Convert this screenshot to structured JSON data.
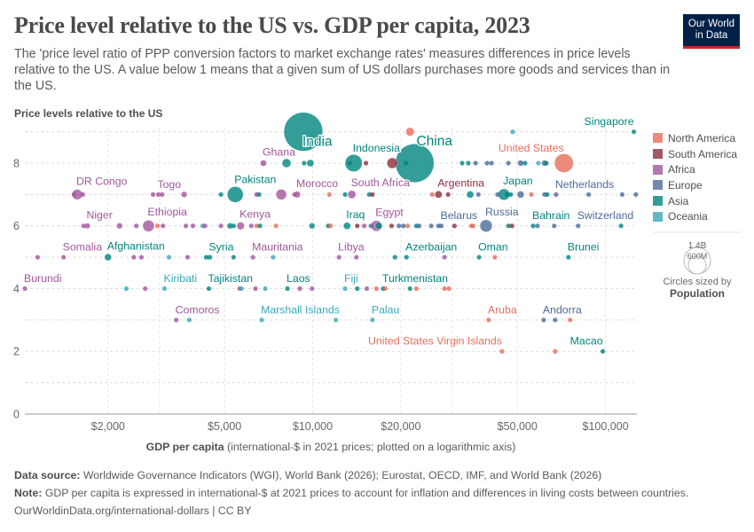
{
  "title": "Price level relative to the US vs. GDP per capita, 2023",
  "subtitle": "The 'price level ratio of PPP conversion factors to market exchange rates' measures differences in price levels relative to the US. A value below 1 means that a given sum of US dollars purchases more goods and services than in the US.",
  "logo": {
    "line1": "Our World",
    "line2": "in Data"
  },
  "footer": {
    "source_label": "Data source:",
    "source_text": "Worldwide Governance Indicators (WGI), World Bank (2026); Eurostat, OECD, IMF, and World Bank (2026)",
    "note_label": "Note:",
    "note_text": "GDP per capita is expressed in international-$ at 2021 prices to account for inflation and differences in living costs between countries.",
    "credit": "OurWorldinData.org/international-dollars | CC BY"
  },
  "size_legend": {
    "large": "1.4B",
    "small": "600M",
    "caption": "Circles sized by",
    "variable": "Population"
  },
  "chart_data": {
    "type": "scatter",
    "title": "Price level relative to the US vs. GDP per capita, 2023",
    "ylabel": "Price levels relative to the US",
    "xlabel_bold": "GDP per capita",
    "xlabel_rest": "(international-$ in 2021 prices; plotted on a logarithmic axis)",
    "x_scale": "log",
    "xlim": [
      1040,
      128000
    ],
    "ylim": [
      0,
      9
    ],
    "grid": true,
    "legend_position": "right",
    "x_ticks": [
      {
        "value": 2000,
        "label": "$2,000"
      },
      {
        "value": 5000,
        "label": "$5,000"
      },
      {
        "value": 10000,
        "label": "$10,000"
      },
      {
        "value": 20000,
        "label": "$20,000"
      },
      {
        "value": 50000,
        "label": "$50,000"
      },
      {
        "value": 100000,
        "label": "$100,000"
      }
    ],
    "x_gridlines": [
      2000,
      3000,
      5000,
      10000,
      20000,
      30000,
      50000,
      100000
    ],
    "y_ticks": [
      {
        "value": 0,
        "label": "0"
      },
      {
        "value": 2,
        "label": "2"
      },
      {
        "value": 4,
        "label": "4"
      },
      {
        "value": 6,
        "label": "6"
      },
      {
        "value": 8,
        "label": "8"
      }
    ],
    "y_gridlines": [
      1,
      2,
      3,
      4,
      5,
      6,
      7,
      8,
      9
    ],
    "regions": [
      {
        "name": "North America",
        "color": "#e56e5a"
      },
      {
        "name": "South America",
        "color": "#8c2f3c"
      },
      {
        "name": "Africa",
        "color": "#a2559c"
      },
      {
        "name": "Europe",
        "color": "#4c6a9c"
      },
      {
        "name": "Asia",
        "color": "#00847e"
      },
      {
        "name": "Oceania",
        "color": "#38aaba"
      }
    ],
    "point_fields": [
      "gdp_per_capita",
      "price_level",
      "region_index",
      "population_millions",
      "label"
    ],
    "points": [
      [
        9290,
        9,
        4,
        1430,
        "India"
      ],
      [
        21500,
        9,
        0,
        70,
        ""
      ],
      [
        48200,
        9,
        5,
        0,
        ""
      ],
      [
        125000,
        9,
        4,
        0,
        "Singapore"
      ],
      [
        6790,
        8,
        2,
        34,
        "Ghana"
      ],
      [
        8140,
        8,
        4,
        74,
        ""
      ],
      [
        9350,
        8,
        4,
        0,
        ""
      ],
      [
        9820,
        8,
        4,
        48,
        ""
      ],
      [
        13400,
        8,
        4,
        0,
        ""
      ],
      [
        13800,
        8,
        4,
        278,
        "Indonesia"
      ],
      [
        15200,
        8,
        1,
        0,
        ""
      ],
      [
        18700,
        8,
        1,
        107,
        ""
      ],
      [
        20800,
        8,
        4,
        0,
        ""
      ],
      [
        22300,
        8,
        4,
        1410,
        "China"
      ],
      [
        32400,
        8,
        4,
        0,
        ""
      ],
      [
        34000,
        8,
        4,
        0,
        ""
      ],
      [
        36000,
        8,
        3,
        0,
        ""
      ],
      [
        39400,
        8,
        3,
        0,
        ""
      ],
      [
        40800,
        8,
        3,
        0,
        ""
      ],
      [
        46600,
        8,
        3,
        0,
        ""
      ],
      [
        51300,
        8,
        3,
        30,
        ""
      ],
      [
        53100,
        8,
        4,
        0,
        ""
      ],
      [
        59000,
        8,
        5,
        0,
        ""
      ],
      [
        61900,
        8,
        3,
        30,
        ""
      ],
      [
        62800,
        8,
        4,
        0,
        ""
      ],
      [
        72100,
        8,
        0,
        335,
        "United States"
      ],
      [
        1530,
        7,
        2,
        0,
        ""
      ],
      [
        1570,
        7,
        2,
        102,
        "DR Congo"
      ],
      [
        1640,
        7,
        2,
        0,
        ""
      ],
      [
        2850,
        7,
        2,
        0,
        ""
      ],
      [
        2970,
        7,
        2,
        9,
        "Togo"
      ],
      [
        3060,
        7,
        2,
        0,
        ""
      ],
      [
        3640,
        7,
        2,
        30,
        ""
      ],
      [
        4860,
        7,
        4,
        0,
        ""
      ],
      [
        5440,
        7,
        4,
        240,
        "Pakistan"
      ],
      [
        6430,
        7,
        2,
        0,
        ""
      ],
      [
        6560,
        7,
        4,
        0,
        ""
      ],
      [
        7810,
        7,
        2,
        107,
        ""
      ],
      [
        8670,
        7,
        2,
        0,
        ""
      ],
      [
        8850,
        7,
        2,
        38,
        "Morocco"
      ],
      [
        11400,
        7,
        0,
        0,
        ""
      ],
      [
        12900,
        7,
        4,
        0,
        ""
      ],
      [
        13600,
        7,
        2,
        62,
        "South Africa"
      ],
      [
        15600,
        7,
        4,
        0,
        ""
      ],
      [
        16000,
        7,
        1,
        0,
        ""
      ],
      [
        25600,
        7,
        0,
        0,
        ""
      ],
      [
        26900,
        7,
        1,
        46,
        "Argentina"
      ],
      [
        29000,
        7,
        1,
        0,
        ""
      ],
      [
        34500,
        7,
        4,
        48,
        ""
      ],
      [
        36800,
        7,
        3,
        0,
        ""
      ],
      [
        42800,
        7,
        3,
        0,
        ""
      ],
      [
        45000,
        7,
        4,
        124,
        "Japan"
      ],
      [
        46200,
        7,
        4,
        0,
        ""
      ],
      [
        47500,
        7,
        4,
        0,
        ""
      ],
      [
        51300,
        7,
        3,
        48,
        ""
      ],
      [
        55800,
        7,
        0,
        0,
        ""
      ],
      [
        61900,
        7,
        3,
        0,
        ""
      ],
      [
        63200,
        7,
        4,
        0,
        ""
      ],
      [
        67800,
        7,
        3,
        18,
        "Netherlands"
      ],
      [
        87600,
        7,
        3,
        0,
        ""
      ],
      [
        114000,
        7,
        3,
        0,
        ""
      ],
      [
        127000,
        7,
        3,
        0,
        ""
      ],
      [
        1650,
        6,
        2,
        0,
        ""
      ],
      [
        1700,
        6,
        2,
        27,
        "Niger"
      ],
      [
        2190,
        6,
        2,
        30,
        ""
      ],
      [
        2500,
        6,
        2,
        0,
        ""
      ],
      [
        2750,
        6,
        2,
        127,
        "Ethiopia"
      ],
      [
        2950,
        6,
        0,
        0,
        ""
      ],
      [
        3080,
        6,
        2,
        0,
        ""
      ],
      [
        3690,
        6,
        2,
        0,
        ""
      ],
      [
        3900,
        6,
        2,
        0,
        ""
      ],
      [
        4210,
        6,
        5,
        0,
        ""
      ],
      [
        4290,
        6,
        2,
        0,
        ""
      ],
      [
        4860,
        6,
        2,
        0,
        ""
      ],
      [
        5220,
        6,
        4,
        30,
        ""
      ],
      [
        5370,
        6,
        4,
        0,
        ""
      ],
      [
        5670,
        6,
        2,
        55,
        "Kenya"
      ],
      [
        6170,
        6,
        2,
        0,
        ""
      ],
      [
        6430,
        6,
        0,
        0,
        ""
      ],
      [
        6610,
        6,
        4,
        0,
        ""
      ],
      [
        7490,
        6,
        0,
        0,
        ""
      ],
      [
        9950,
        6,
        4,
        30,
        ""
      ],
      [
        11300,
        6,
        4,
        0,
        ""
      ],
      [
        11500,
        6,
        0,
        0,
        ""
      ],
      [
        13100,
        6,
        4,
        45,
        "Iraq"
      ],
      [
        14200,
        6,
        1,
        0,
        ""
      ],
      [
        15000,
        6,
        2,
        0,
        ""
      ],
      [
        15800,
        6,
        3,
        0,
        ""
      ],
      [
        16500,
        6,
        2,
        113,
        "Egypt"
      ],
      [
        16800,
        6,
        4,
        48,
        ""
      ],
      [
        18600,
        6,
        1,
        0,
        ""
      ],
      [
        19700,
        6,
        3,
        0,
        ""
      ],
      [
        20400,
        6,
        3,
        0,
        ""
      ],
      [
        21100,
        6,
        0,
        0,
        ""
      ],
      [
        22600,
        6,
        4,
        0,
        ""
      ],
      [
        23100,
        6,
        3,
        0,
        ""
      ],
      [
        25400,
        6,
        3,
        0,
        ""
      ],
      [
        26900,
        6,
        3,
        0,
        ""
      ],
      [
        27500,
        6,
        3,
        9,
        "Belarus"
      ],
      [
        30500,
        6,
        1,
        0,
        ""
      ],
      [
        34800,
        6,
        0,
        0,
        ""
      ],
      [
        35300,
        6,
        0,
        0,
        ""
      ],
      [
        39100,
        6,
        3,
        144,
        "Russia"
      ],
      [
        46600,
        6,
        4,
        0,
        ""
      ],
      [
        47900,
        6,
        1,
        0,
        ""
      ],
      [
        56600,
        6,
        4,
        0,
        "Bahrain"
      ],
      [
        58600,
        6,
        3,
        0,
        ""
      ],
      [
        66800,
        6,
        3,
        0,
        ""
      ],
      [
        80600,
        6,
        3,
        9,
        "Switzerland"
      ],
      [
        113000,
        6,
        4,
        0,
        ""
      ],
      [
        1150,
        5,
        2,
        0,
        ""
      ],
      [
        1410,
        5,
        2,
        18,
        "Somalia"
      ],
      [
        2000,
        5,
        4,
        42,
        "Afghanistan"
      ],
      [
        2450,
        5,
        2,
        0,
        ""
      ],
      [
        2600,
        5,
        2,
        0,
        ""
      ],
      [
        3230,
        5,
        5,
        0,
        ""
      ],
      [
        3740,
        5,
        2,
        0,
        ""
      ],
      [
        4330,
        5,
        4,
        0,
        ""
      ],
      [
        4450,
        5,
        4,
        23,
        "Syria"
      ],
      [
        5370,
        5,
        4,
        0,
        ""
      ],
      [
        6250,
        5,
        2,
        5,
        "Mauritania"
      ],
      [
        7330,
        5,
        5,
        0,
        ""
      ],
      [
        12300,
        5,
        2,
        7,
        "Libya"
      ],
      [
        14100,
        5,
        2,
        0,
        ""
      ],
      [
        19100,
        5,
        4,
        0,
        ""
      ],
      [
        20900,
        5,
        4,
        10,
        "Azerbaijan"
      ],
      [
        28200,
        5,
        2,
        0,
        ""
      ],
      [
        37000,
        5,
        4,
        5,
        "Oman"
      ],
      [
        41900,
        5,
        0,
        0,
        ""
      ],
      [
        74700,
        5,
        4,
        0,
        "Brunei"
      ],
      [
        1040,
        4,
        2,
        13,
        "Burundi"
      ],
      [
        2310,
        4,
        5,
        0,
        ""
      ],
      [
        2680,
        4,
        2,
        0,
        ""
      ],
      [
        3120,
        4,
        5,
        0,
        "Kiribati"
      ],
      [
        4420,
        4,
        4,
        10,
        "Tajikistan"
      ],
      [
        5630,
        4,
        2,
        0,
        ""
      ],
      [
        5710,
        4,
        5,
        0,
        ""
      ],
      [
        6380,
        4,
        2,
        0,
        ""
      ],
      [
        6890,
        4,
        5,
        0,
        ""
      ],
      [
        8200,
        4,
        4,
        8,
        "Laos"
      ],
      [
        9040,
        4,
        2,
        0,
        ""
      ],
      [
        9950,
        4,
        2,
        0,
        ""
      ],
      [
        12900,
        4,
        5,
        0,
        "Fiji"
      ],
      [
        14200,
        4,
        4,
        0,
        ""
      ],
      [
        15300,
        4,
        2,
        0,
        ""
      ],
      [
        16500,
        4,
        0,
        0,
        ""
      ],
      [
        17400,
        4,
        4,
        7,
        "Turkmenistan"
      ],
      [
        17700,
        4,
        0,
        0,
        ""
      ],
      [
        21500,
        4,
        4,
        0,
        ""
      ],
      [
        22600,
        4,
        0,
        0,
        ""
      ],
      [
        28200,
        4,
        0,
        0,
        ""
      ],
      [
        29200,
        4,
        0,
        0,
        ""
      ],
      [
        3420,
        3,
        2,
        0,
        "Comoros"
      ],
      [
        3790,
        3,
        5,
        0,
        ""
      ],
      [
        6700,
        3,
        5,
        0,
        "Marshall Islands"
      ],
      [
        12000,
        3,
        5,
        0,
        ""
      ],
      [
        16000,
        3,
        5,
        0,
        "Palau"
      ],
      [
        39900,
        3,
        0,
        0,
        "Aruba"
      ],
      [
        61500,
        3,
        3,
        0,
        "Andorra"
      ],
      [
        67300,
        3,
        3,
        0,
        ""
      ],
      [
        75700,
        3,
        0,
        0,
        ""
      ],
      [
        44300,
        2,
        0,
        0,
        "United States Virgin Islands"
      ],
      [
        67300,
        2,
        0,
        0,
        ""
      ],
      [
        97900,
        2,
        4,
        0,
        "Macao"
      ]
    ]
  }
}
